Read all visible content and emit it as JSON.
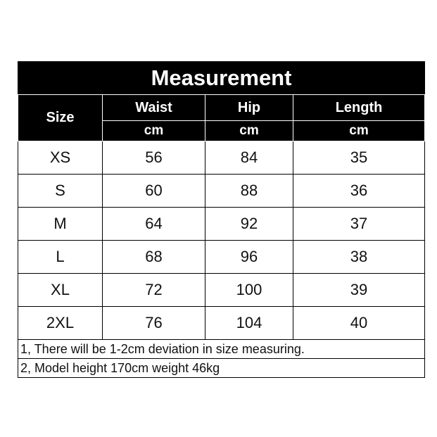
{
  "title": "Measurement",
  "headers": {
    "size": "Size",
    "columns": [
      "Waist",
      "Hip",
      "Length"
    ],
    "unit": "cm"
  },
  "rows": [
    {
      "size": "XS",
      "waist": "56",
      "hip": "84",
      "length": "35"
    },
    {
      "size": "S",
      "waist": "60",
      "hip": "88",
      "length": "36"
    },
    {
      "size": "M",
      "waist": "64",
      "hip": "92",
      "length": "37"
    },
    {
      "size": "L",
      "waist": "68",
      "hip": "96",
      "length": "38"
    },
    {
      "size": "XL",
      "waist": "72",
      "hip": "100",
      "length": "39"
    },
    {
      "size": "2XL",
      "waist": "76",
      "hip": "104",
      "length": "40"
    }
  ],
  "notes": [
    "1, There will be 1-2cm deviation in size measuring.",
    "2, Model height 170cm weight 46kg"
  ]
}
